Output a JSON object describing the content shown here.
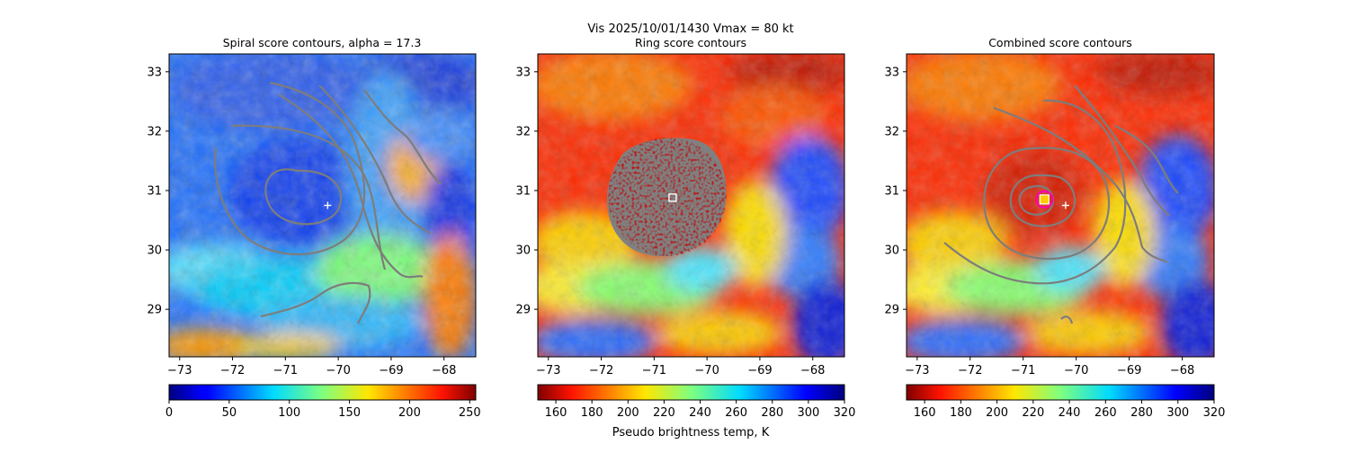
{
  "figure": {
    "suptitle": "Vis  2025/10/01/1430    Vmax = 80 kt"
  },
  "chart_data": [
    {
      "type": "heatmap",
      "title": "Spiral score contours, alpha = 17.3",
      "xlim": [
        -73.2,
        -67.4
      ],
      "ylim": [
        28.2,
        33.3
      ],
      "xticks": [
        -73,
        -72,
        -71,
        -70,
        -69,
        -68
      ],
      "yticks": [
        29,
        30,
        31,
        32,
        33
      ],
      "xtick_labels": [
        "−73",
        "−72",
        "−71",
        "−70",
        "−69",
        "−68"
      ],
      "ytick_labels": [
        "29",
        "30",
        "31",
        "32",
        "33"
      ],
      "colormap": "jet",
      "colorbar": {
        "range": [
          0,
          255
        ],
        "ticks": [
          0,
          50,
          100,
          150,
          200,
          250
        ],
        "tick_labels": [
          "0",
          "50",
          "100",
          "150",
          "200",
          "250"
        ],
        "reversed": false,
        "label": ""
      },
      "markers": [
        {
          "kind": "plus",
          "lon": -70.2,
          "lat": 30.75,
          "color": "#ffffff"
        }
      ]
    },
    {
      "type": "heatmap",
      "title": "Ring score contours",
      "xlim": [
        -73.2,
        -67.4
      ],
      "ylim": [
        28.2,
        33.3
      ],
      "xticks": [
        -73,
        -72,
        -71,
        -70,
        -69,
        -68
      ],
      "yticks": [
        29,
        30,
        31,
        32,
        33
      ],
      "xtick_labels": [
        "−73",
        "−72",
        "−71",
        "−70",
        "−69",
        "−68"
      ],
      "ytick_labels": [
        "29",
        "30",
        "31",
        "32",
        "33"
      ],
      "colormap": "jet_r",
      "colorbar": {
        "range": [
          150,
          320
        ],
        "ticks": [
          160,
          180,
          200,
          220,
          240,
          260,
          280,
          300,
          320
        ],
        "tick_labels": [
          "160",
          "180",
          "200",
          "220",
          "240",
          "260",
          "280",
          "300",
          "320"
        ],
        "reversed": true,
        "label": "Pseudo brightness temp, K"
      },
      "markers": [
        {
          "kind": "square",
          "lon": -70.65,
          "lat": 30.88,
          "color": "#ffffff"
        }
      ]
    },
    {
      "type": "heatmap",
      "title": "Combined score contours",
      "xlim": [
        -73.2,
        -67.4
      ],
      "ylim": [
        28.2,
        33.3
      ],
      "xticks": [
        -73,
        -72,
        -71,
        -70,
        -69,
        -68
      ],
      "yticks": [
        29,
        30,
        31,
        32,
        33
      ],
      "xtick_labels": [
        "−73",
        "−72",
        "−71",
        "−70",
        "−69",
        "−68"
      ],
      "ytick_labels": [
        "29",
        "30",
        "31",
        "32",
        "33"
      ],
      "colormap": "jet_r",
      "colorbar": {
        "range": [
          150,
          320
        ],
        "ticks": [
          160,
          180,
          200,
          220,
          240,
          260,
          280,
          300,
          320
        ],
        "tick_labels": [
          "160",
          "180",
          "200",
          "220",
          "240",
          "260",
          "280",
          "300",
          "320"
        ],
        "reversed": true,
        "label": ""
      },
      "markers": [
        {
          "kind": "target",
          "lon": -70.6,
          "lat": 30.85,
          "color": "#ffcc00"
        },
        {
          "kind": "plus",
          "lon": -70.2,
          "lat": 30.75,
          "color": "#ffffff"
        }
      ]
    }
  ]
}
